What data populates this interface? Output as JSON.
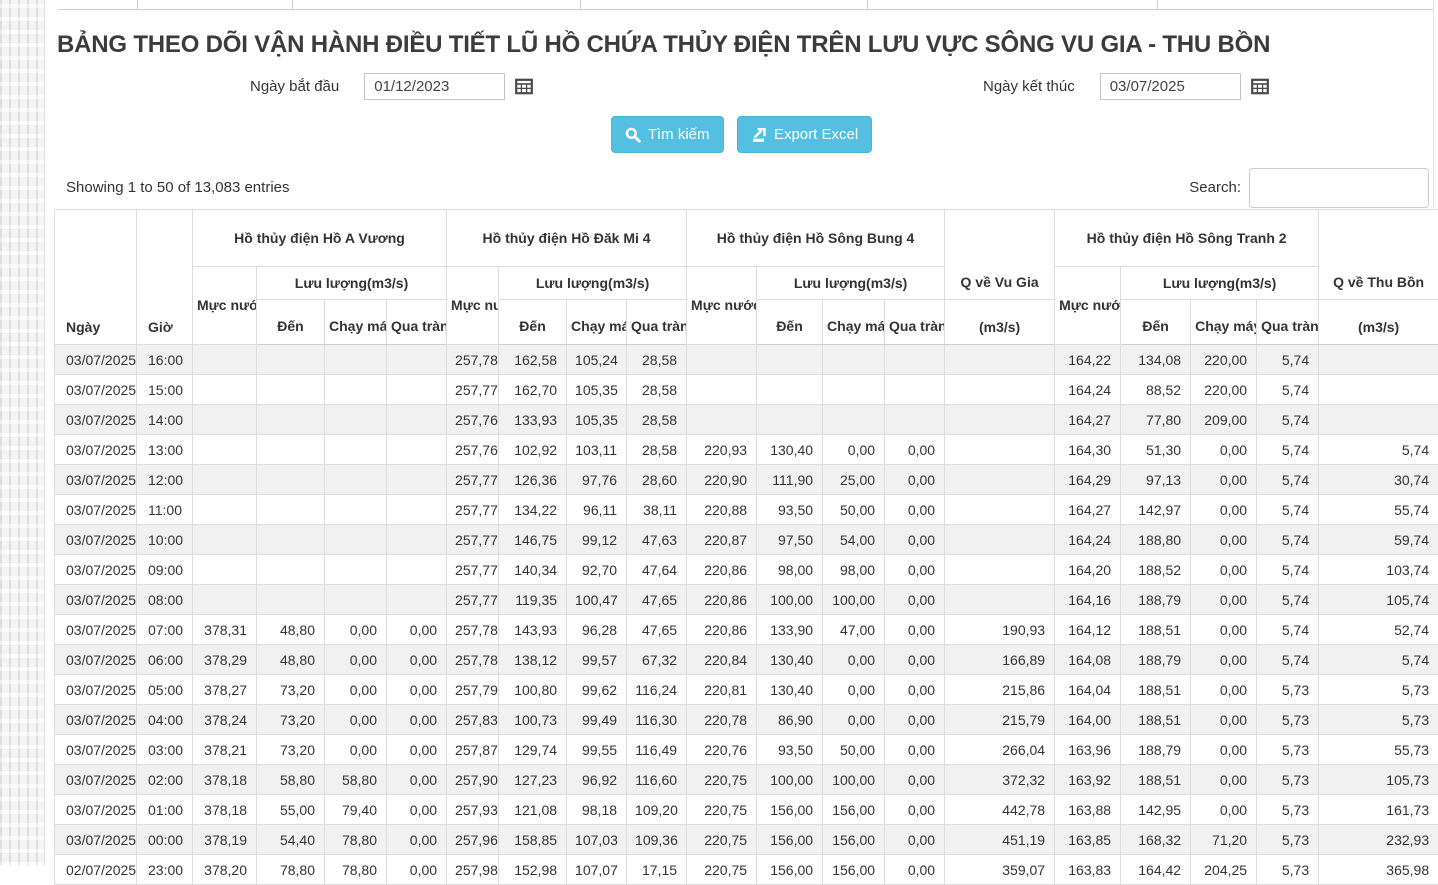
{
  "title": "BẢNG THEO DÕI VẬN HÀNH ĐIỀU TIẾT LŨ HỒ CHỨA THỦY ĐIỆN TRÊN LƯU VỰC SÔNG VU GIA - THU BỒN",
  "filters": {
    "start_label": "Ngày bắt đầu",
    "start_value": "01/12/2023",
    "end_label": "Ngày kết thúc",
    "end_value": "03/07/2025",
    "search_button": "Tìm kiếm",
    "export_button": "Export Excel",
    "calendar_icon": "calendar-grid-icon",
    "search_icon": "magnifier-icon",
    "export_icon": "export-arrow-icon"
  },
  "colors": {
    "accent_button": "#54bfe0",
    "button_border": "#46b8da",
    "row_stripe": "#f1f1f1",
    "table_border": "#dddddd",
    "title_text": "#3b3b3b"
  },
  "table": {
    "info": "Showing 1 to 50 of 13,083 entries",
    "search_label": "Search:",
    "search_value": "",
    "groups": [
      {
        "label": "Hồ thủy điện Hồ A Vương"
      },
      {
        "label": "Hồ thủy điện Hồ Đăk Mi 4"
      },
      {
        "label": "Hồ thủy điện Hồ Sông Bung 4"
      },
      {
        "label": "Q về Vu Gia"
      },
      {
        "label": "Hồ thủy điện Hồ Sông Tranh 2"
      },
      {
        "label": "Q về Thu Bồn"
      }
    ],
    "headers": {
      "date": "Ngày",
      "hour": "Giờ",
      "water_level": "Mực nước (m)",
      "flow": "Lưu lượng(m3/s)",
      "inflow": "Đến",
      "turbine": "Chạy máy",
      "spillway": "Qua tràn",
      "unit": "(m3/s)"
    },
    "rows": [
      [
        "03/07/2025",
        "16:00",
        "",
        "",
        "",
        "",
        "257,78",
        "162,58",
        "105,24",
        "28,58",
        "",
        "",
        "",
        "",
        "",
        "164,22",
        "134,08",
        "220,00",
        "5,74",
        ""
      ],
      [
        "03/07/2025",
        "15:00",
        "",
        "",
        "",
        "",
        "257,77",
        "162,70",
        "105,35",
        "28,58",
        "",
        "",
        "",
        "",
        "",
        "164,24",
        "88,52",
        "220,00",
        "5,74",
        ""
      ],
      [
        "03/07/2025",
        "14:00",
        "",
        "",
        "",
        "",
        "257,76",
        "133,93",
        "105,35",
        "28,58",
        "",
        "",
        "",
        "",
        "",
        "164,27",
        "77,80",
        "209,00",
        "5,74",
        ""
      ],
      [
        "03/07/2025",
        "13:00",
        "",
        "",
        "",
        "",
        "257,76",
        "102,92",
        "103,11",
        "28,58",
        "220,93",
        "130,40",
        "0,00",
        "0,00",
        "",
        "164,30",
        "51,30",
        "0,00",
        "5,74",
        "5,74"
      ],
      [
        "03/07/2025",
        "12:00",
        "",
        "",
        "",
        "",
        "257,77",
        "126,36",
        "97,76",
        "28,60",
        "220,90",
        "111,90",
        "25,00",
        "0,00",
        "",
        "164,29",
        "97,13",
        "0,00",
        "5,74",
        "30,74"
      ],
      [
        "03/07/2025",
        "11:00",
        "",
        "",
        "",
        "",
        "257,77",
        "134,22",
        "96,11",
        "38,11",
        "220,88",
        "93,50",
        "50,00",
        "0,00",
        "",
        "164,27",
        "142,97",
        "0,00",
        "5,74",
        "55,74"
      ],
      [
        "03/07/2025",
        "10:00",
        "",
        "",
        "",
        "",
        "257,77",
        "146,75",
        "99,12",
        "47,63",
        "220,87",
        "97,50",
        "54,00",
        "0,00",
        "",
        "164,24",
        "188,80",
        "0,00",
        "5,74",
        "59,74"
      ],
      [
        "03/07/2025",
        "09:00",
        "",
        "",
        "",
        "",
        "257,77",
        "140,34",
        "92,70",
        "47,64",
        "220,86",
        "98,00",
        "98,00",
        "0,00",
        "",
        "164,20",
        "188,52",
        "0,00",
        "5,74",
        "103,74"
      ],
      [
        "03/07/2025",
        "08:00",
        "",
        "",
        "",
        "",
        "257,77",
        "119,35",
        "100,47",
        "47,65",
        "220,86",
        "100,00",
        "100,00",
        "0,00",
        "",
        "164,16",
        "188,79",
        "0,00",
        "5,74",
        "105,74"
      ],
      [
        "03/07/2025",
        "07:00",
        "378,31",
        "48,80",
        "0,00",
        "0,00",
        "257,78",
        "143,93",
        "96,28",
        "47,65",
        "220,86",
        "133,90",
        "47,00",
        "0,00",
        "190,93",
        "164,12",
        "188,51",
        "0,00",
        "5,74",
        "52,74"
      ],
      [
        "03/07/2025",
        "06:00",
        "378,29",
        "48,80",
        "0,00",
        "0,00",
        "257,78",
        "138,12",
        "99,57",
        "67,32",
        "220,84",
        "130,40",
        "0,00",
        "0,00",
        "166,89",
        "164,08",
        "188,79",
        "0,00",
        "5,74",
        "5,74"
      ],
      [
        "03/07/2025",
        "05:00",
        "378,27",
        "73,20",
        "0,00",
        "0,00",
        "257,79",
        "100,80",
        "99,62",
        "116,24",
        "220,81",
        "130,40",
        "0,00",
        "0,00",
        "215,86",
        "164,04",
        "188,51",
        "0,00",
        "5,73",
        "5,73"
      ],
      [
        "03/07/2025",
        "04:00",
        "378,24",
        "73,20",
        "0,00",
        "0,00",
        "257,83",
        "100,73",
        "99,49",
        "116,30",
        "220,78",
        "86,90",
        "0,00",
        "0,00",
        "215,79",
        "164,00",
        "188,51",
        "0,00",
        "5,73",
        "5,73"
      ],
      [
        "03/07/2025",
        "03:00",
        "378,21",
        "73,20",
        "0,00",
        "0,00",
        "257,87",
        "129,74",
        "99,55",
        "116,49",
        "220,76",
        "93,50",
        "50,00",
        "0,00",
        "266,04",
        "163,96",
        "188,79",
        "0,00",
        "5,73",
        "55,73"
      ],
      [
        "03/07/2025",
        "02:00",
        "378,18",
        "58,80",
        "58,80",
        "0,00",
        "257,90",
        "127,23",
        "96,92",
        "116,60",
        "220,75",
        "100,00",
        "100,00",
        "0,00",
        "372,32",
        "163,92",
        "188,51",
        "0,00",
        "5,73",
        "105,73"
      ],
      [
        "03/07/2025",
        "01:00",
        "378,18",
        "55,00",
        "79,40",
        "0,00",
        "257,93",
        "121,08",
        "98,18",
        "109,20",
        "220,75",
        "156,00",
        "156,00",
        "0,00",
        "442,78",
        "163,88",
        "142,95",
        "0,00",
        "5,73",
        "161,73"
      ],
      [
        "03/07/2025",
        "00:00",
        "378,19",
        "54,40",
        "78,80",
        "0,00",
        "257,96",
        "158,85",
        "107,03",
        "109,36",
        "220,75",
        "156,00",
        "156,00",
        "0,00",
        "451,19",
        "163,85",
        "168,32",
        "71,20",
        "5,73",
        "232,93"
      ],
      [
        "02/07/2025",
        "23:00",
        "378,20",
        "78,80",
        "78,80",
        "0,00",
        "257,98",
        "152,98",
        "107,07",
        "17,15",
        "220,75",
        "156,00",
        "156,00",
        "0,00",
        "359,07",
        "163,83",
        "164,42",
        "204,25",
        "5,73",
        "365,98"
      ]
    ]
  }
}
